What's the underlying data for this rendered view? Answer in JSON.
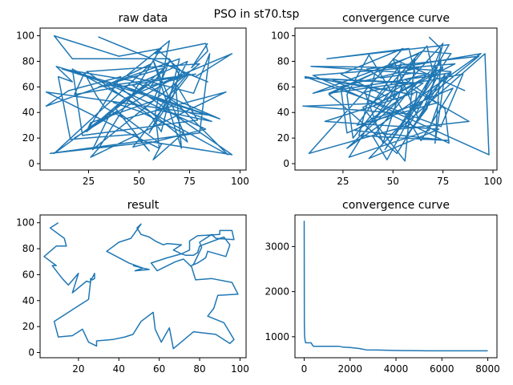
{
  "figure": {
    "suptitle": "PSO in st70.tsp"
  },
  "chart_data": [
    {
      "id": "raw",
      "type": "line",
      "title": "raw data",
      "xlim": [
        1,
        103
      ],
      "ylim": [
        -5,
        106
      ],
      "xticks": [
        25,
        50,
        75,
        100
      ],
      "yticks": [
        0,
        20,
        40,
        60,
        80,
        100
      ],
      "x": [
        84,
        76,
        84,
        83,
        58,
        61,
        40,
        8,
        17,
        65,
        71,
        56,
        65,
        57,
        26,
        24,
        41,
        15,
        4,
        70,
        61,
        56,
        24,
        80,
        27,
        36,
        63,
        30,
        78,
        18,
        23,
        29,
        33,
        43,
        93,
        26,
        30,
        60,
        74,
        47,
        83,
        35,
        56,
        8,
        60,
        38,
        55,
        48,
        16,
        10,
        17,
        9,
        47,
        90,
        46,
        12,
        84,
        4,
        60,
        58,
        65,
        44,
        77,
        85,
        80,
        6,
        56,
        96,
        47,
        74,
        55,
        67,
        70,
        84,
        30,
        78,
        96,
        43,
        24,
        54,
        68,
        94,
        17,
        22,
        79,
        68,
        71,
        57,
        74,
        38,
        86,
        59,
        74,
        64,
        18,
        39,
        61,
        57,
        72,
        50,
        37
      ],
      "y": [
        94,
        75,
        88,
        94,
        86,
        90,
        84,
        100,
        82,
        82,
        67,
        61,
        80,
        49,
        32,
        25,
        68,
        57,
        45,
        82,
        25,
        37,
        72,
        78,
        11,
        40,
        75,
        60,
        70,
        54,
        71,
        53,
        44,
        35,
        56,
        5,
        12,
        88,
        68,
        13,
        27,
        62,
        78,
        8,
        68,
        44,
        10,
        23,
        19,
        68,
        64,
        76,
        58,
        35,
        65,
        74,
        38,
        56,
        12,
        39,
        96,
        69,
        55,
        86,
        24,
        8,
        17,
        7,
        61,
        80,
        24,
        53,
        73,
        64,
        99,
        68,
        86,
        51,
        25,
        62,
        48,
        7,
        74,
        22,
        34,
        63,
        12,
        81,
        17,
        63,
        33,
        42,
        70,
        64,
        20,
        41,
        15,
        3,
        24,
        41,
        48
      ]
    },
    {
      "id": "conv1",
      "type": "line",
      "title": "convergence curve",
      "xlim": [
        1,
        102
      ],
      "ylim": [
        -5,
        106
      ],
      "xticks": [
        25,
        50,
        75,
        100
      ],
      "yticks": [
        0,
        20,
        40,
        60,
        80,
        100
      ],
      "x": [
        68,
        74,
        65,
        57,
        78,
        17,
        58,
        61,
        44,
        37,
        93,
        57,
        5,
        40,
        63,
        10,
        63,
        9,
        68,
        56,
        76,
        78,
        40,
        75,
        58,
        8,
        55,
        24,
        50,
        54,
        32,
        73,
        68,
        28,
        40,
        61,
        62,
        16,
        73,
        38,
        79,
        53,
        94,
        27,
        74,
        46,
        79,
        65,
        18,
        55,
        45,
        36,
        85,
        74,
        6,
        60,
        20,
        45,
        81,
        10,
        98,
        96,
        53,
        88,
        59,
        40,
        47,
        74,
        71,
        76,
        52,
        23,
        18,
        41,
        33,
        78,
        31,
        65,
        6,
        57,
        35,
        56,
        61,
        41,
        75,
        67,
        56,
        79,
        24,
        27,
        80,
        64,
        38,
        27,
        30,
        67,
        71,
        63,
        50,
        86
      ],
      "y": [
        99,
        90,
        54,
        36,
        93,
        82,
        90,
        71,
        67,
        74,
        84,
        39,
        45,
        47,
        86,
        55,
        75,
        76,
        70,
        66,
        43,
        16,
        45,
        75,
        30,
        8,
        90,
        70,
        50,
        78,
        30,
        48,
        26,
        5,
        35,
        46,
        56,
        33,
        27,
        4,
        72,
        75,
        86,
        12,
        80,
        11,
        86,
        88,
        55,
        63,
        16,
        56,
        70,
        29,
        68,
        54,
        65,
        49,
        78,
        69,
        7,
        86,
        27,
        33,
        59,
        21,
        3,
        81,
        16,
        70,
        8,
        48,
        54,
        71,
        22,
        18,
        26,
        63,
        67,
        63,
        44,
        2,
        82,
        35,
        94,
        43,
        20,
        71,
        58,
        24,
        59,
        18,
        85,
        54,
        20,
        92,
        65,
        34,
        82,
        57
      ]
    },
    {
      "id": "result",
      "type": "line",
      "title": "result",
      "xlim": [
        1,
        103
      ],
      "ylim": [
        -4,
        106
      ],
      "xticks": [
        20,
        40,
        60,
        80,
        100
      ],
      "yticks": [
        0,
        20,
        40,
        60,
        80,
        100
      ],
      "x": [
        10,
        6,
        13,
        14,
        9,
        3,
        9,
        7,
        12,
        15,
        20,
        17,
        24,
        26,
        26,
        27,
        28,
        28,
        26,
        25,
        17,
        14,
        8,
        10,
        17,
        22,
        25,
        29,
        29,
        37,
        43,
        47,
        51,
        57,
        58,
        61,
        65,
        67,
        77,
        88,
        95,
        97,
        92,
        84,
        87,
        88,
        89,
        99,
        96,
        86,
        78,
        76,
        72,
        68,
        59,
        56,
        64,
        71,
        75,
        75,
        79,
        90,
        90,
        96,
        97,
        88,
        86,
        80,
        81,
        77,
        76,
        79,
        83,
        84,
        93,
        95,
        92,
        80,
        79,
        77,
        73,
        71,
        67,
        71,
        64,
        62,
        58,
        55,
        51,
        49,
        51,
        46,
        40,
        34,
        45,
        52,
        55,
        48,
        52,
        47
      ],
      "y": [
        100,
        96,
        88,
        82,
        82,
        74,
        67,
        67,
        57,
        52,
        61,
        46,
        55,
        54,
        57,
        56,
        57,
        61,
        55,
        41,
        33,
        30,
        24,
        12,
        13,
        18,
        8,
        5,
        9,
        10,
        12,
        14,
        24,
        31,
        18,
        8,
        19,
        3,
        16,
        14,
        7,
        10,
        23,
        28,
        34,
        39,
        44,
        45,
        54,
        57,
        56,
        66,
        72,
        70,
        63,
        69,
        73,
        76,
        79,
        86,
        90,
        91,
        94,
        94,
        87,
        88,
        91,
        85,
        81,
        68,
        67,
        69,
        73,
        78,
        74,
        83,
        89,
        82,
        77,
        75,
        75,
        76,
        79,
        83,
        84,
        83,
        86,
        89,
        91,
        96,
        99,
        88,
        85,
        78,
        69,
        65,
        64,
        63,
        65,
        67
      ]
    },
    {
      "id": "conv2",
      "type": "line",
      "title": "convergence curve",
      "xlim": [
        -400,
        8400
      ],
      "ylim": [
        535,
        3700
      ],
      "xticks": [
        0,
        2000,
        4000,
        6000,
        8000
      ],
      "yticks": [
        1000,
        2000,
        3000
      ],
      "x": [
        0,
        10,
        20,
        40,
        60,
        100,
        300,
        400,
        1500,
        1700,
        2000,
        2400,
        2700,
        3200,
        4000,
        5100,
        5300,
        6000,
        7000,
        8000
      ],
      "y": [
        3570,
        1280,
        1020,
        920,
        870,
        865,
        865,
        790,
        790,
        770,
        760,
        740,
        710,
        705,
        695,
        690,
        688,
        688,
        688,
        688
      ]
    }
  ]
}
